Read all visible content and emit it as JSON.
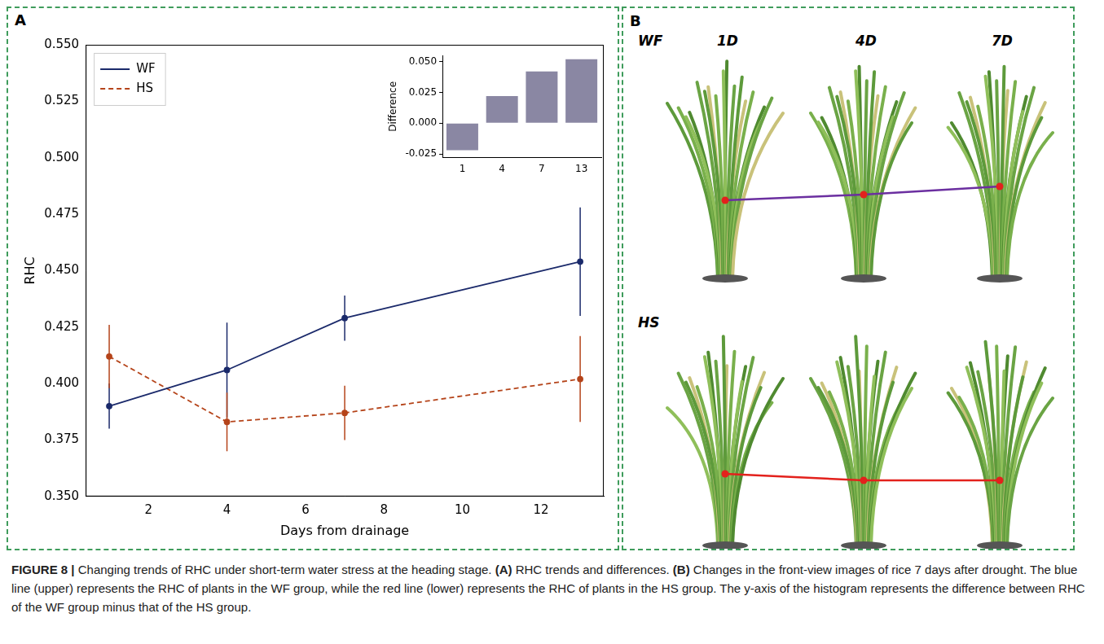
{
  "figure": {
    "panels": [
      "A",
      "B"
    ],
    "caption_label": "FIGURE 8 |",
    "caption": "Changing trends of RHC under short-term water stress at the heading stage. (A) RHC trends and differences. (B) Changes in the front-view images of rice 7 days after drought. The blue line (upper) represents the RHC of plants in the WF group, while the red line (lower) represents the RHC of plants in the HS group. The y-axis of the histogram represents the difference between RHC of the WF group minus that of the HS group."
  },
  "chart_data": [
    {
      "type": "line",
      "x_label": "Days from drainage",
      "y_label": "RHC",
      "x": [
        1,
        4,
        7,
        13
      ],
      "series": [
        {
          "name": "WF",
          "color": "#1b2a6b",
          "line_style": "solid",
          "marker": "circle",
          "values": [
            0.39,
            0.406,
            0.429,
            0.454
          ],
          "errors": [
            0.01,
            0.021,
            0.01,
            0.024
          ]
        },
        {
          "name": "HS",
          "color": "#b5441a",
          "line_style": "dashed",
          "marker": "circle",
          "values": [
            0.412,
            0.383,
            0.387,
            0.402
          ],
          "errors": [
            0.014,
            0.013,
            0.012,
            0.019
          ]
        }
      ],
      "xlim": [
        0.4,
        13.6
      ],
      "xticks": [
        2,
        4,
        6,
        8,
        10,
        12
      ],
      "ylim": [
        0.35,
        0.55
      ],
      "yticks": [
        {
          "value": 0.35,
          "label": "0.350"
        },
        {
          "value": 0.375,
          "label": "0.375"
        },
        {
          "value": 0.4,
          "label": "0.400"
        },
        {
          "value": 0.425,
          "label": "0.425"
        },
        {
          "value": 0.45,
          "label": "0.450"
        },
        {
          "value": 0.475,
          "label": "0.475"
        },
        {
          "value": 0.5,
          "label": "0.500"
        },
        {
          "value": 0.525,
          "label": "0.525"
        },
        {
          "value": 0.55,
          "label": "0.550"
        }
      ],
      "legend": "upper left",
      "grid": false
    },
    {
      "type": "bar",
      "y_label": "Difference",
      "categories": [
        "1",
        "4",
        "7",
        "13"
      ],
      "values": [
        -0.022,
        0.022,
        0.042,
        0.052
      ],
      "color": "#8a87a3",
      "ylim": [
        -0.028,
        0.055
      ],
      "yticks": [
        {
          "value": -0.025,
          "label": "-0.025"
        },
        {
          "value": 0,
          "label": "0.000"
        },
        {
          "value": 0.025,
          "label": "0.025"
        },
        {
          "value": 0.05,
          "label": "0.050"
        }
      ],
      "grid": false
    }
  ],
  "panel_b": {
    "column_labels": [
      "1D",
      "4D",
      "7D"
    ],
    "rows": [
      {
        "label": "WF",
        "color": "#6b2fa0"
      },
      {
        "label": "HS",
        "color": "#e3211c"
      }
    ]
  }
}
